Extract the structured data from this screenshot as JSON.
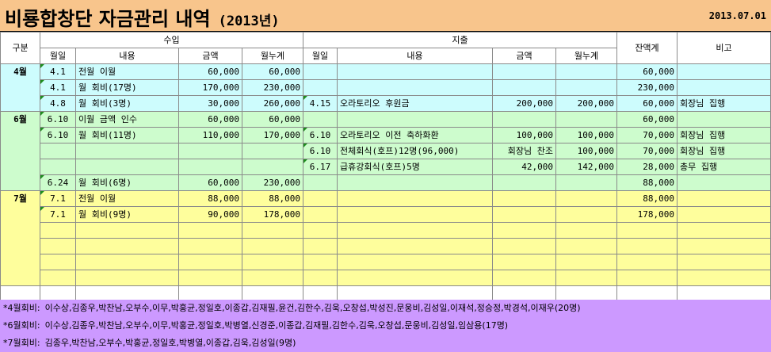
{
  "title": "비룡합창단 자금관리 내역",
  "year": "(2013년)",
  "date": "2013.07.01",
  "headers": {
    "category": "구분",
    "income": "수입",
    "expense": "지출",
    "balance": "잔액계",
    "remarks": "비고",
    "month_day": "월일",
    "content": "내용",
    "amount": "금액",
    "monthly_total": "월누계"
  },
  "months": [
    {
      "label": "4월",
      "rows": [
        {
          "in_date": "4.1",
          "in_desc": "전월 이월",
          "in_amt": "60,000",
          "in_cum": "60,000",
          "ex_date": "",
          "ex_desc": "",
          "ex_amt": "",
          "ex_cum": "",
          "balance": "60,000",
          "remark": ""
        },
        {
          "in_date": "4.1",
          "in_desc": "월 회비(17명)",
          "in_amt": "170,000",
          "in_cum": "230,000",
          "ex_date": "",
          "ex_desc": "",
          "ex_amt": "",
          "ex_cum": "",
          "balance": "230,000",
          "remark": ""
        },
        {
          "in_date": "4.8",
          "in_desc": "월 회비(3명)",
          "in_amt": "30,000",
          "in_cum": "260,000",
          "ex_date": "4.15",
          "ex_desc": "오라토리오 후원금",
          "ex_amt": "200,000",
          "ex_cum": "200,000",
          "balance": "60,000",
          "remark": "회장님 집행"
        }
      ]
    },
    {
      "label": "6월",
      "rows": [
        {
          "in_date": "6.10",
          "in_desc": "이월 금액 인수",
          "in_amt": "60,000",
          "in_cum": "60,000",
          "ex_date": "",
          "ex_desc": "",
          "ex_amt": "",
          "ex_cum": "",
          "balance": "60,000",
          "remark": ""
        },
        {
          "in_date": "6.10",
          "in_desc": "월 회비(11명)",
          "in_amt": "110,000",
          "in_cum": "170,000",
          "ex_date": "6.10",
          "ex_desc": "오라토리오 이전 축하화환",
          "ex_amt": "100,000",
          "ex_cum": "100,000",
          "balance": "70,000",
          "remark": "회장님 집행"
        },
        {
          "in_date": "",
          "in_desc": "",
          "in_amt": "",
          "in_cum": "",
          "ex_date": "6.10",
          "ex_desc": "전체회식(호프)12명(96,000)",
          "ex_amt": "회장님 찬조",
          "ex_cum": "100,000",
          "balance": "70,000",
          "remark": "회장님 집행"
        },
        {
          "in_date": "",
          "in_desc": "",
          "in_amt": "",
          "in_cum": "",
          "ex_date": "6.17",
          "ex_desc": "급휴강회식(호프)5명",
          "ex_amt": "42,000",
          "ex_cum": "142,000",
          "balance": "28,000",
          "remark": "총무 집행"
        },
        {
          "in_date": "6.24",
          "in_desc": "월 회비(6명)",
          "in_amt": "60,000",
          "in_cum": "230,000",
          "ex_date": "",
          "ex_desc": "",
          "ex_amt": "",
          "ex_cum": "",
          "balance": "88,000",
          "remark": ""
        }
      ]
    },
    {
      "label": "7월",
      "rows": [
        {
          "in_date": "7.1",
          "in_desc": "전월 이월",
          "in_amt": "88,000",
          "in_cum": "88,000",
          "ex_date": "",
          "ex_desc": "",
          "ex_amt": "",
          "ex_cum": "",
          "balance": "88,000",
          "remark": ""
        },
        {
          "in_date": "7.1",
          "in_desc": "월 회비(9명)",
          "in_amt": "90,000",
          "in_cum": "178,000",
          "ex_date": "",
          "ex_desc": "",
          "ex_amt": "",
          "ex_cum": "",
          "balance": "178,000",
          "remark": ""
        },
        {
          "in_date": "",
          "in_desc": "",
          "in_amt": "",
          "in_cum": "",
          "ex_date": "",
          "ex_desc": "",
          "ex_amt": "",
          "ex_cum": "",
          "balance": "",
          "remark": ""
        },
        {
          "in_date": "",
          "in_desc": "",
          "in_amt": "",
          "in_cum": "",
          "ex_date": "",
          "ex_desc": "",
          "ex_amt": "",
          "ex_cum": "",
          "balance": "",
          "remark": ""
        },
        {
          "in_date": "",
          "in_desc": "",
          "in_amt": "",
          "in_cum": "",
          "ex_date": "",
          "ex_desc": "",
          "ex_amt": "",
          "ex_cum": "",
          "balance": "",
          "remark": ""
        },
        {
          "in_date": "",
          "in_desc": "",
          "in_amt": "",
          "in_cum": "",
          "ex_date": "",
          "ex_desc": "",
          "ex_amt": "",
          "ex_cum": "",
          "balance": "",
          "remark": ""
        }
      ]
    }
  ],
  "notes": [
    {
      "label": "*4월회비:",
      "text": "이수상,김종우,박찬남,오부수,이무,박홍균,정일호,이종갑,김재필,윤건,김한수,김욱,오창섭,박성진,문웅비,김성일,이재석,정승정,박경석,이재우(20명)"
    },
    {
      "label": "*6월회비:",
      "text": "이수상,김종우,박찬남,오부수,이무,박홍균,정일호,박병열,신경준,이종갑,김재필,김한수,김욱,오창섭,문웅비,김성일,임삼용(17명)"
    },
    {
      "label": "*7월회비:",
      "text": "김종우,박찬남,오부수,박홍균,정일호,박병열,이종갑,김욱,김성일(9명)"
    }
  ],
  "colors": {
    "title_bg": "#f8c58c",
    "april_bg": "#cdfcfd",
    "june_bg": "#cdfccd",
    "july_bg": "#fefe9c",
    "notes_bg": "#cc99ff"
  }
}
